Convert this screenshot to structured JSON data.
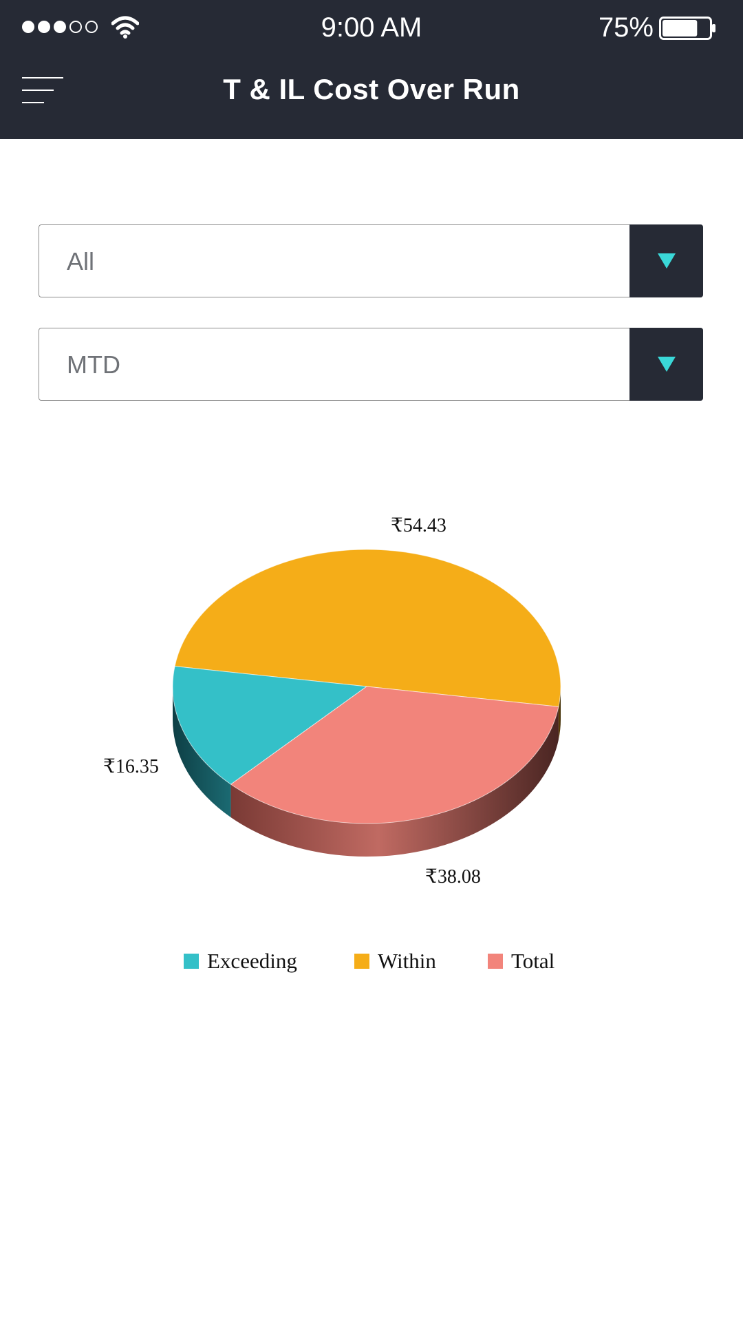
{
  "status_bar": {
    "time": "9:00 AM",
    "battery_percent": "75%",
    "signal_filled": 3,
    "signal_total": 5,
    "battery_level": 0.75
  },
  "header": {
    "title": "T & IL Cost Over Run",
    "menu_icon": "hamburger-menu-icon"
  },
  "filters": {
    "category": {
      "selected": "All",
      "icon": "chevron-down-icon"
    },
    "period": {
      "selected": "MTD",
      "icon": "chevron-down-icon"
    }
  },
  "colors": {
    "header_bg": "#262a35",
    "arrow": "#3ad8d8",
    "exceeding": "#34c0c8",
    "within": "#f5ad18",
    "total": "#f2847b"
  },
  "chart_data": {
    "type": "pie",
    "style": "3d",
    "currency": "₹",
    "series": [
      {
        "name": "Exceeding",
        "value": 16.35,
        "label": "₹16.35",
        "color": "#34c0c8"
      },
      {
        "name": "Within",
        "value": 54.43,
        "label": "₹54.43",
        "color": "#f5ad18"
      },
      {
        "name": "Total",
        "value": 38.08,
        "label": "₹38.08",
        "color": "#f2847b"
      }
    ],
    "legend": [
      "Exceeding",
      "Within",
      "Total"
    ],
    "legend_position": "bottom"
  }
}
